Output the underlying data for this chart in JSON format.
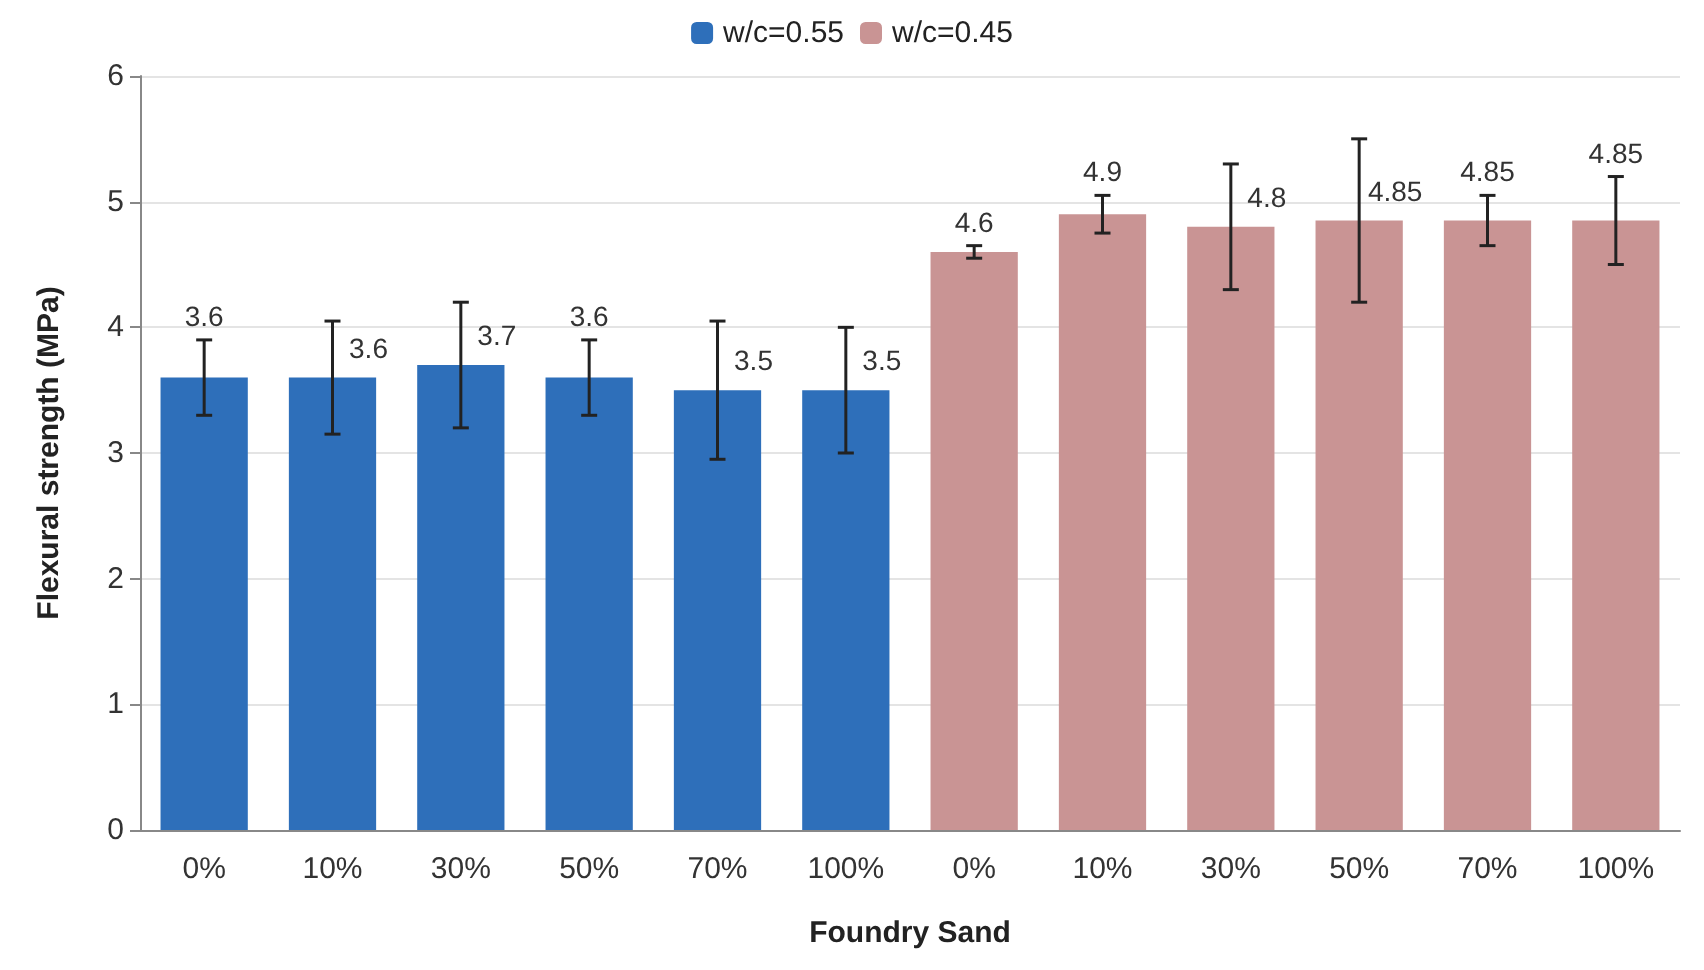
{
  "chart_data": {
    "type": "bar",
    "xlabel": "Foundry Sand",
    "ylabel": "Flexural strength (MPa)",
    "categories": [
      "0%",
      "10%",
      "30%",
      "50%",
      "70%",
      "100%",
      "0%",
      "10%",
      "30%",
      "50%",
      "70%",
      "100%"
    ],
    "series": [
      {
        "name": "w/c=0.55",
        "color": "#2e6fba",
        "values": [
          3.6,
          3.6,
          3.7,
          3.6,
          3.5,
          3.5,
          null,
          null,
          null,
          null,
          null,
          null
        ],
        "errors": [
          0.3,
          0.45,
          0.5,
          0.3,
          0.55,
          0.5,
          null,
          null,
          null,
          null,
          null,
          null
        ]
      },
      {
        "name": "w/c=0.45",
        "color": "#c99494",
        "values": [
          null,
          null,
          null,
          null,
          null,
          null,
          4.6,
          4.9,
          4.8,
          4.85,
          4.85,
          4.85
        ],
        "errors": [
          null,
          null,
          null,
          null,
          null,
          null,
          0.05,
          0.15,
          0.5,
          0.65,
          0.2,
          0.35
        ]
      }
    ],
    "ylim": [
      0,
      6
    ],
    "yticks": [
      0,
      1,
      2,
      3,
      4,
      5,
      6
    ],
    "grid": true,
    "legend": "top",
    "data_labels": true
  }
}
